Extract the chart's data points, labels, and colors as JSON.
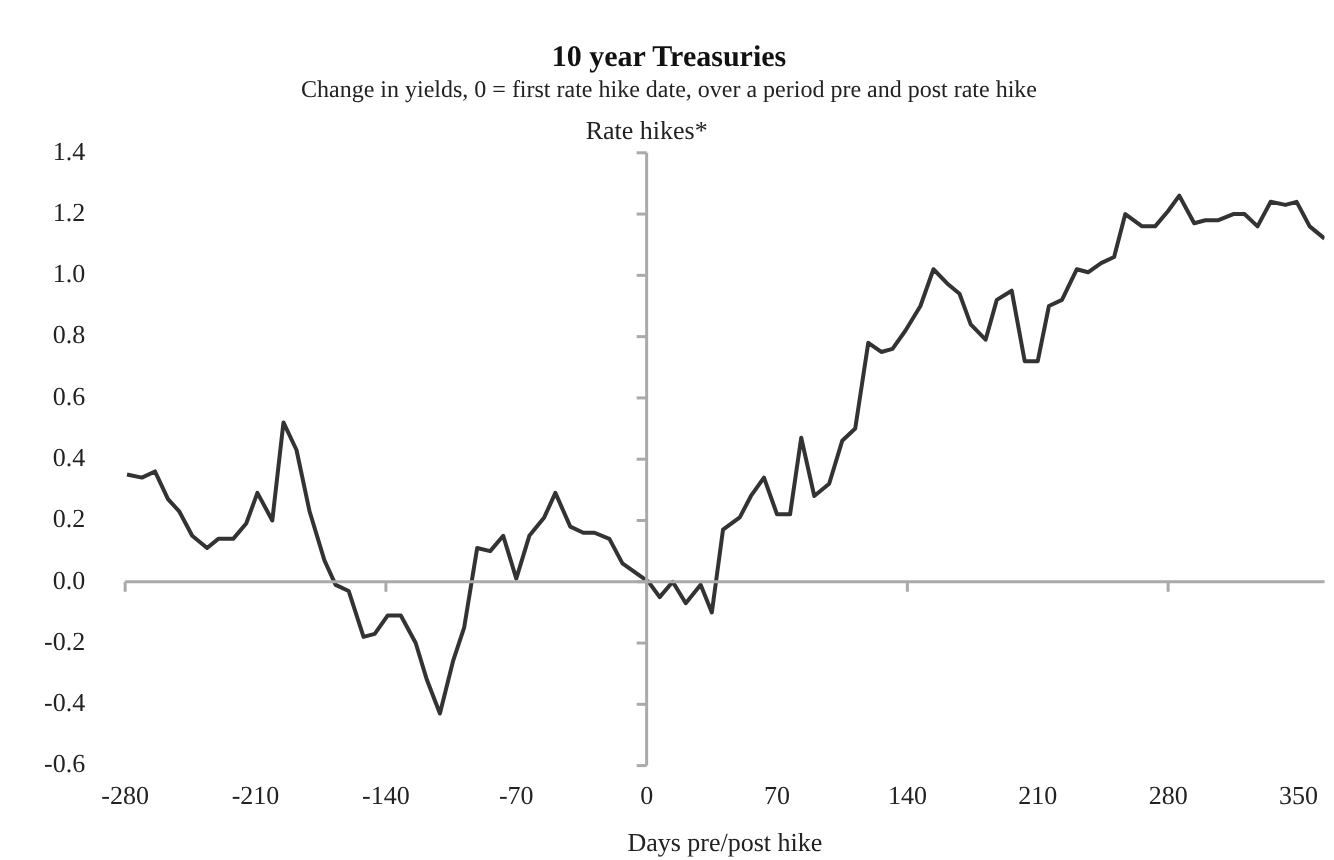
{
  "chart_data": {
    "type": "line",
    "title": "10 year Treasuries",
    "subtitle": "Change in yields, 0 = first rate hike date, over a period pre and post rate hike",
    "xlabel": "Days pre/post hike",
    "x": [
      -279,
      -271,
      -264,
      -257,
      -251,
      -244,
      -236,
      -230,
      -222,
      -215,
      -209,
      -201,
      -195,
      -188,
      -181,
      -173,
      -167,
      -160,
      -152,
      -146,
      -139,
      -132,
      -124,
      -118,
      -111,
      -104,
      -98,
      -91,
      -84,
      -77,
      -70,
      -63,
      -55,
      -49,
      -41,
      -34,
      -28,
      -20,
      -13,
      -6,
      1,
      7,
      14,
      21,
      29,
      35,
      41,
      50,
      56,
      63,
      70,
      77,
      83,
      90,
      98,
      105,
      112,
      119,
      126,
      132,
      139,
      147,
      154,
      162,
      168,
      174,
      182,
      188,
      196,
      203,
      210,
      216,
      223,
      231,
      237,
      244,
      251,
      257,
      266,
      273,
      280,
      286,
      294,
      300,
      307,
      315,
      321,
      328,
      335,
      343,
      349,
      356,
      364
    ],
    "series": [
      {
        "color": "#333333",
        "values": [
          0.35,
          0.34,
          0.36,
          0.27,
          0.23,
          0.15,
          0.11,
          0.14,
          0.14,
          0.19,
          0.29,
          0.2,
          0.52,
          0.43,
          0.23,
          0.07,
          -0.01,
          -0.03,
          -0.18,
          -0.17,
          -0.11,
          -0.11,
          -0.2,
          -0.32,
          -0.43,
          -0.26,
          -0.15,
          0.11,
          0.1,
          0.15,
          0.01,
          0.15,
          0.21,
          0.29,
          0.18,
          0.16,
          0.16,
          0.14,
          0.06,
          0.03,
          0.0,
          -0.05,
          0.0,
          -0.07,
          -0.01,
          -0.1,
          0.17,
          0.21,
          0.28,
          0.34,
          0.22,
          0.22,
          0.47,
          0.28,
          0.32,
          0.46,
          0.5,
          0.78,
          0.75,
          0.76,
          0.82,
          0.9,
          1.02,
          0.97,
          0.94,
          0.84,
          0.79,
          0.92,
          0.95,
          0.72,
          0.72,
          0.9,
          0.92,
          1.02,
          1.01,
          1.04,
          1.06,
          1.2,
          1.16,
          1.16,
          1.21,
          1.26,
          1.17,
          1.18,
          1.18,
          1.2,
          1.2,
          1.16,
          1.24,
          1.23,
          1.24,
          1.16,
          1.12
        ]
      }
    ],
    "xlim": [
      -280,
      364
    ],
    "xticks": [
      -280,
      -210,
      -140,
      -70,
      0,
      70,
      140,
      210,
      280,
      350
    ],
    "ylim": [
      -0.6,
      1.4
    ],
    "yticks": [
      -0.6,
      -0.4,
      -0.2,
      {
        "value": 0,
        "label": "0.0"
      },
      0.2,
      0.4,
      0.6,
      0.8,
      {
        "value": 1,
        "label": "1.0"
      },
      1.2,
      1.4
    ],
    "ref_lines": [
      {
        "axis": "x",
        "value": 0,
        "label": "Rate hikes*",
        "color": "#aaaaaa"
      },
      {
        "axis": "y",
        "value": 0,
        "color": "#aaaaaa"
      }
    ],
    "grid": false,
    "legend": false,
    "marker": "none",
    "line_style": "solid"
  }
}
